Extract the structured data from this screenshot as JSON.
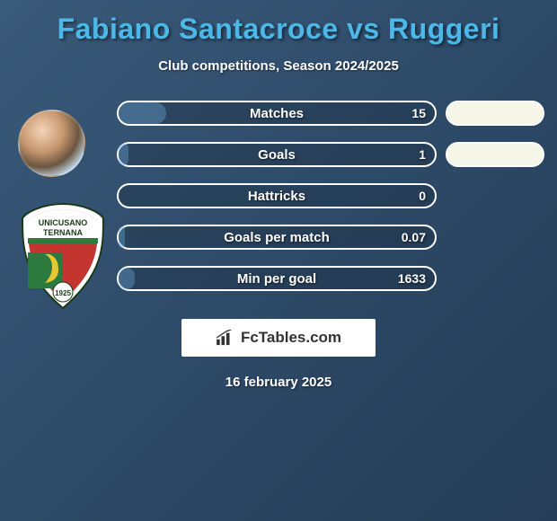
{
  "title": "Fabiano Santacroce vs Ruggeri",
  "subtitle": "Club competitions, Season 2024/2025",
  "date": "16 february 2025",
  "logo_text": "FcTables.com",
  "colors": {
    "title_color": "#4db8e8",
    "bg_gradient_start": "#3a5a7a",
    "bg_gradient_end": "#253d56",
    "bar_border": "#ffffff",
    "bar_fill": "#6aa6d4",
    "right_fill": "#f5f5e8",
    "badge_red": "#c43530",
    "badge_green": "#2d7a3e",
    "badge_white": "#ffffff",
    "badge_yellow": "#e8c830"
  },
  "badge": {
    "text_top": "UNICUSANO",
    "text_bottom": "TERNANA",
    "year": "1925"
  },
  "stats": [
    {
      "label": "Matches",
      "left_value": "15",
      "left_fill_pct": 15,
      "right_filled": true
    },
    {
      "label": "Goals",
      "left_value": "1",
      "left_fill_pct": 3,
      "right_filled": true
    },
    {
      "label": "Hattricks",
      "left_value": "0",
      "left_fill_pct": 0,
      "right_filled": false
    },
    {
      "label": "Goals per match",
      "left_value": "0.07",
      "left_fill_pct": 2,
      "right_filled": false
    },
    {
      "label": "Min per goal",
      "left_value": "1633",
      "left_fill_pct": 5,
      "right_filled": false
    }
  ]
}
